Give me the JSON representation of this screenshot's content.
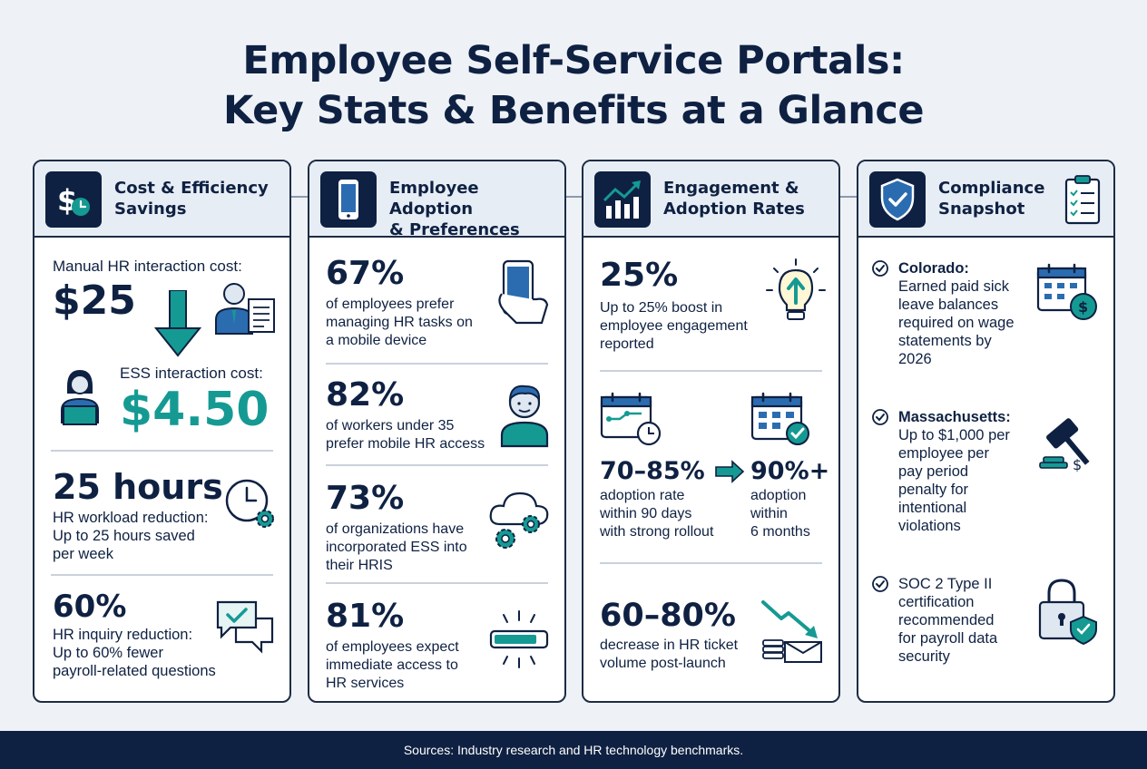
{
  "title": {
    "line1": "Employee Self-Service Portals:",
    "line2": "Key Stats & Benefits at a Glance"
  },
  "cards": {
    "cost": {
      "title_l1": "Cost & Efficiency",
      "title_l2": "Savings",
      "manual_label": "Manual HR interaction cost:",
      "manual_value": "$25",
      "ess_label": "ESS interaction cost:",
      "ess_value": "$4.50",
      "hours_value": "25 hours",
      "hours_l1": "HR workload reduction:",
      "hours_l2": "Up to 25 hours saved",
      "hours_l3": "per week",
      "inquiry_value": "60%",
      "inquiry_l1": "HR inquiry reduction:",
      "inquiry_l2": "Up to 60% fewer",
      "inquiry_l3": "payroll-related questions"
    },
    "adoption": {
      "title_l1": "Employee Adoption",
      "title_l2": "& Preferences",
      "stats": [
        {
          "value": "67%",
          "l1": "of employees prefer",
          "l2": "managing HR tasks on",
          "l3": "a mobile device"
        },
        {
          "value": "82%",
          "l1": "of workers under 35",
          "l2": "prefer mobile HR access",
          "l3": ""
        },
        {
          "value": "73%",
          "l1": "of organizations have",
          "l2": "incorporated ESS into",
          "l3": "their HRIS"
        },
        {
          "value": "81%",
          "l1": "of employees expect",
          "l2": "immediate access to",
          "l3": "HR services"
        }
      ]
    },
    "engagement": {
      "title_l1": "Engagement &",
      "title_l2": "Adoption Rates",
      "boost_value": "25%",
      "boost_l1": "Up to 25% boost in",
      "boost_l2": "employee engagement",
      "boost_l3": "reported",
      "rate_value": "70–85%",
      "rate_l1": "adoption rate",
      "rate_l2": "within 90 days",
      "rate_l3": "with strong rollout",
      "target_value": "90%+",
      "target_l1": "adoption",
      "target_l2": "within",
      "target_l3": "6 months",
      "ticket_value": "60–80%",
      "ticket_l1": "decrease in HR ticket",
      "ticket_l2": "volume post-launch"
    },
    "compliance": {
      "title_l1": "Compliance",
      "title_l2": "Snapshot",
      "items": [
        {
          "lines": [
            "Colorado:",
            "Earned paid sick",
            "leave balances",
            "required on wage",
            "statements by",
            "2026"
          ]
        },
        {
          "lines": [
            "Massachusetts:",
            "Up to $1,000 per",
            "employee per",
            "pay period",
            "penalty for",
            "intentional",
            "violations"
          ]
        },
        {
          "lines": [
            "SOC 2 Type II",
            "certification",
            "recommended",
            "for payroll data",
            "security"
          ]
        }
      ]
    }
  },
  "footer": {
    "text": "Sources: Industry research and HR technology benchmarks."
  },
  "colors": {
    "navy": "#0f2142",
    "teal": "#159a93",
    "panel": "#e7edf5",
    "background": "#eef2f7"
  }
}
